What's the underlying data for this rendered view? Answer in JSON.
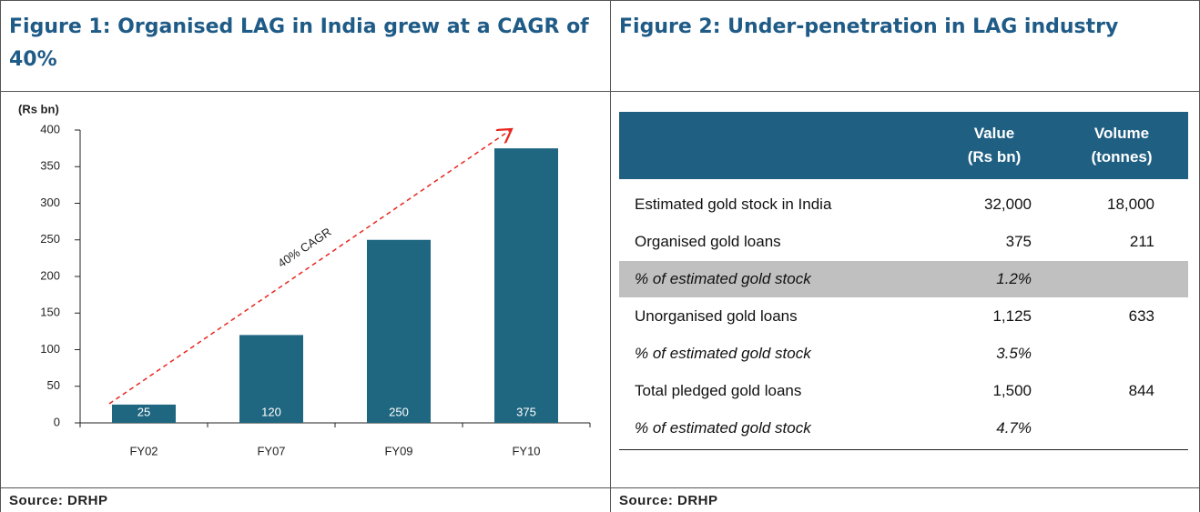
{
  "chart_data": {
    "type": "bar",
    "title": "Figure 1: Organised LAG in India grew at a CAGR of 40%",
    "y_label": "(Rs bn)",
    "categories": [
      "FY02",
      "FY07",
      "FY09",
      "FY10"
    ],
    "values": [
      25,
      120,
      250,
      375
    ],
    "color": "#1f6680",
    "ylim": [
      0,
      400
    ],
    "yticks": [
      0,
      50,
      100,
      150,
      200,
      250,
      300,
      350,
      400
    ],
    "annotation": "40% CAGR",
    "source": "Source: DRHP"
  },
  "figure2": {
    "title": "Figure 2: Under-penetration in LAG industry",
    "table": {
      "header": [
        [
          "Value",
          "(Rs bn)"
        ],
        [
          "Volume",
          "(tonnes)"
        ]
      ],
      "rows": [
        [
          "Estimated gold stock in India",
          "32,000",
          "18,000"
        ],
        [
          "Organised gold loans",
          "375",
          "211"
        ],
        [
          "% of estimated gold stock",
          "1.2%"
        ],
        [
          "Unorganised gold loans",
          "1,125",
          "633"
        ],
        [
          "% of estimated gold stock",
          "3.5%"
        ],
        [
          "Total pledged gold loans",
          "1,500",
          "844"
        ],
        [
          "% of estimated gold stock",
          "4.7%"
        ]
      ]
    },
    "source": "Source: DRHP"
  }
}
